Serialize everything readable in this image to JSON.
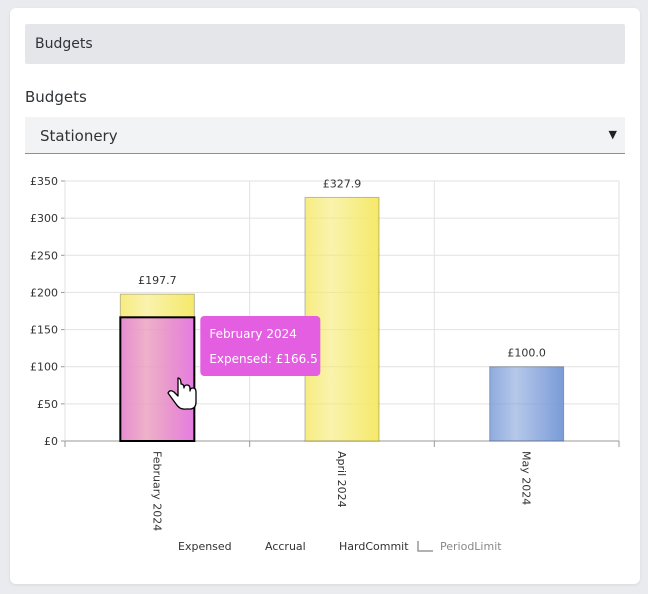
{
  "header": {
    "title": "Budgets"
  },
  "budget_select": {
    "label": "Budgets",
    "value": "Stationery"
  },
  "tooltip": {
    "title": "February 2024",
    "line": "Expensed: £166.5",
    "category_index": 0
  },
  "chart_data": {
    "type": "bar",
    "categories": [
      "February 2024",
      "April 2024",
      "May 2024"
    ],
    "series": [
      {
        "name": "Expensed",
        "values": [
          166.5,
          null,
          null
        ],
        "color": "#e57ce3"
      },
      {
        "name": "Accrual",
        "values": [
          197.7,
          327.9,
          null
        ],
        "color": "#f5e96a"
      },
      {
        "name": "HardCommit",
        "values": [
          null,
          null,
          100.0
        ],
        "color": "#7a9bd8"
      }
    ],
    "data_labels": [
      "£197.7",
      "£327.9",
      "£100.0"
    ],
    "label_values": [
      197.7,
      327.9,
      100.0
    ],
    "y_ticks": [
      "£0",
      "£50",
      "£100",
      "£150",
      "£200",
      "£250",
      "£300",
      "£350"
    ],
    "ylim": [
      0,
      350
    ],
    "legend": [
      "Expensed",
      "Accrual",
      "HardCommit",
      "PeriodLimit"
    ],
    "legend_position": "bottom",
    "grid": true,
    "title": "",
    "xlabel": "",
    "ylabel": ""
  }
}
